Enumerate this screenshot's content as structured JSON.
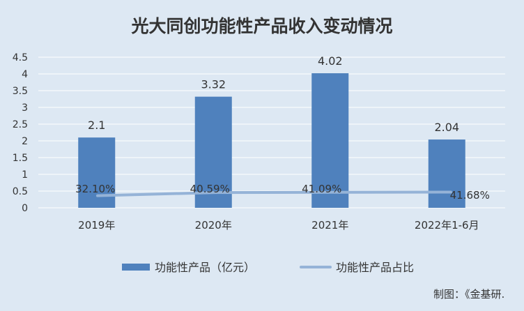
{
  "chart_data": {
    "type": "bar",
    "title": "光大同创功能性产品收入变动情况",
    "categories": [
      "2019年",
      "2020年",
      "2021年",
      "2022年1-6月"
    ],
    "series": [
      {
        "name": "功能性产品（亿元）",
        "kind": "bar",
        "values": [
          2.1,
          3.32,
          4.02,
          2.04
        ],
        "labels": [
          "2.1",
          "3.32",
          "4.02",
          "2.04"
        ],
        "color": "#4f81bd"
      },
      {
        "name": "功能性产品占比",
        "kind": "line",
        "values": [
          32.1,
          40.59,
          41.09,
          41.68
        ],
        "labels": [
          "32.10%",
          "40.59%",
          "41.09%",
          "41.68%"
        ],
        "color": "#95b3d7"
      }
    ],
    "y_ticks": [
      "0",
      "0.5",
      "1",
      "1.5",
      "2",
      "2.5",
      "3",
      "3.5",
      "4",
      "4.5"
    ],
    "ylim": [
      0,
      4.5
    ],
    "grid": true,
    "legend_position": "bottom",
    "source_note": "制图：《金基研."
  },
  "colors": {
    "background": "#dde8f3",
    "gridline": "#ffffff",
    "text": "#333333"
  }
}
